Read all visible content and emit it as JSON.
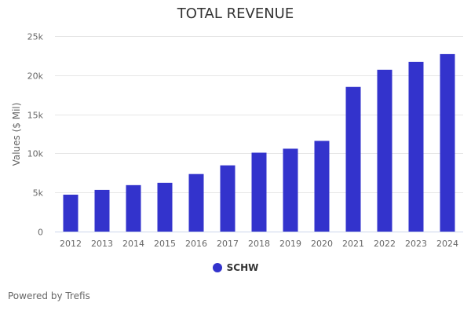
{
  "chart_data": {
    "type": "bar",
    "title": "TOTAL REVENUE",
    "xlabel": "",
    "ylabel": "Values ($ Mil)",
    "ylim": [
      0,
      25000
    ],
    "yticks": [
      0,
      5000,
      10000,
      15000,
      20000,
      25000
    ],
    "ytick_labels": [
      "0",
      "5k",
      "10k",
      "15k",
      "20k",
      "25k"
    ],
    "grid": true,
    "legend_position": "bottom-center",
    "categories": [
      "2012",
      "2013",
      "2014",
      "2015",
      "2016",
      "2017",
      "2018",
      "2019",
      "2020",
      "2021",
      "2022",
      "2023",
      "2024"
    ],
    "series": [
      {
        "name": "SCHW",
        "color": "#3333CC",
        "values": [
          4720,
          5330,
          5940,
          6240,
          7360,
          8470,
          10090,
          10600,
          11600,
          18500,
          20700,
          21700,
          22700
        ]
      }
    ]
  },
  "footer": {
    "credit": "Powered by Trefis"
  }
}
